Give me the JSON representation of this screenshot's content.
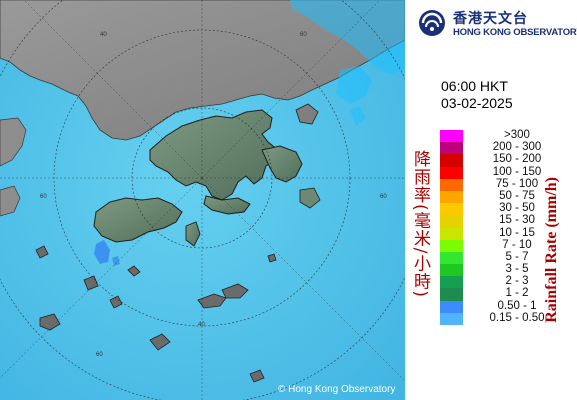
{
  "header": {
    "org_name_chinese": "香港天文台",
    "org_name_english": "HONG KONG OBSERVATORY"
  },
  "timestamp": {
    "time": "06:00 HKT",
    "date": "03-02-2025"
  },
  "legend": {
    "title_chinese": "降雨率(毫米/小時)",
    "title_english": "Rainfall Rate (mm/h)",
    "items": [
      {
        "label": ">300",
        "color": "#ff00ff"
      },
      {
        "label": "200 - 300",
        "color": "#c0007a"
      },
      {
        "label": "150 - 200",
        "color": "#d40000"
      },
      {
        "label": "100 - 150",
        "color": "#ff0000"
      },
      {
        "label": "75 - 100",
        "color": "#ff6a00"
      },
      {
        "label": "50 - 75",
        "color": "#ffa500"
      },
      {
        "label": "30 - 50",
        "color": "#ffc800"
      },
      {
        "label": "15 - 30",
        "color": "#e6d200"
      },
      {
        "label": "10 - 15",
        "color": "#c8e600"
      },
      {
        "label": "7 - 10",
        "color": "#7cfc00"
      },
      {
        "label": "5 - 7",
        "color": "#32e632"
      },
      {
        "label": "3 - 5",
        "color": "#1ec81e"
      },
      {
        "label": "2 - 3",
        "color": "#14a050"
      },
      {
        "label": "1 - 2",
        "color": "#1e8c50"
      },
      {
        "label": "0.50 - 1",
        "color": "#3c8cff"
      },
      {
        "label": "0.15 - 0.50",
        "color": "#50b4ff"
      }
    ]
  },
  "map": {
    "range_ring_labels": [
      "40",
      "60",
      "60",
      "60",
      "60",
      "40"
    ],
    "sea_color": "#5cc8ea",
    "land_color": "#8a8a8a",
    "rain_colors": [
      "#1ec0ff",
      "#3a8cf0"
    ]
  },
  "footer": {
    "copyright": "© Hong Kong Observatory"
  }
}
